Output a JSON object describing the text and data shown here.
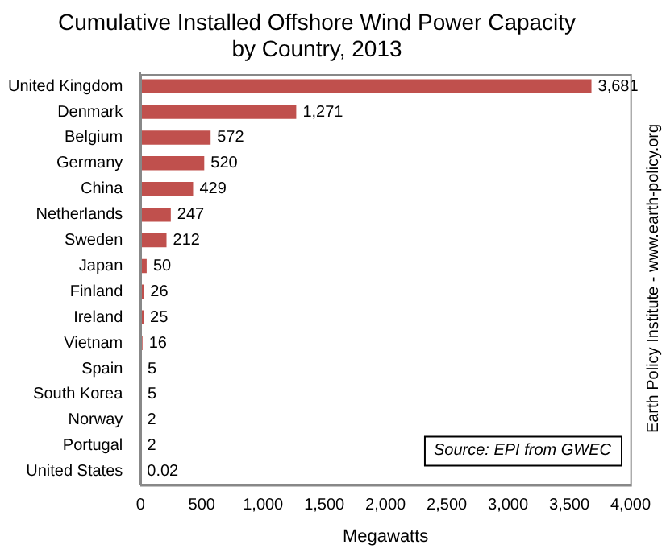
{
  "chart_data": {
    "type": "bar",
    "orientation": "horizontal",
    "title": "Cumulative Installed Offshore Wind Power Capacity\nby Country, 2013",
    "xlabel": "Megawatts",
    "categories": [
      "United Kingdom",
      "Denmark",
      "Belgium",
      "Germany",
      "China",
      "Netherlands",
      "Sweden",
      "Japan",
      "Finland",
      "Ireland",
      "Vietnam",
      "Spain",
      "South Korea",
      "Norway",
      "Portugal",
      "United States"
    ],
    "values": [
      3681,
      1271,
      572,
      520,
      429,
      247,
      212,
      50,
      26,
      25,
      16,
      5,
      5,
      2,
      2,
      0.02
    ],
    "value_labels": [
      "3,681",
      "1,271",
      "572",
      "520",
      "429",
      "247",
      "212",
      "50",
      "26",
      "25",
      "16",
      "5",
      "5",
      "2",
      "2",
      "0.02"
    ],
    "color": "#c0504d",
    "xlim": [
      0,
      4000
    ],
    "xticks": [
      0,
      500,
      {
        "value": 1000,
        "label": "1,000"
      },
      {
        "value": 1500,
        "label": "1,500"
      },
      {
        "value": 2000,
        "label": "2,000"
      },
      {
        "value": 2500,
        "label": "2,500"
      },
      {
        "value": 3000,
        "label": "3,000"
      },
      {
        "value": 3500,
        "label": "3,500"
      },
      {
        "value": 4000,
        "label": "4,000"
      }
    ],
    "grid": false,
    "legend": false,
    "annotations": [
      "Source: EPI from GWEC",
      "Earth Policy Institute - www.earth-policy.org"
    ]
  }
}
